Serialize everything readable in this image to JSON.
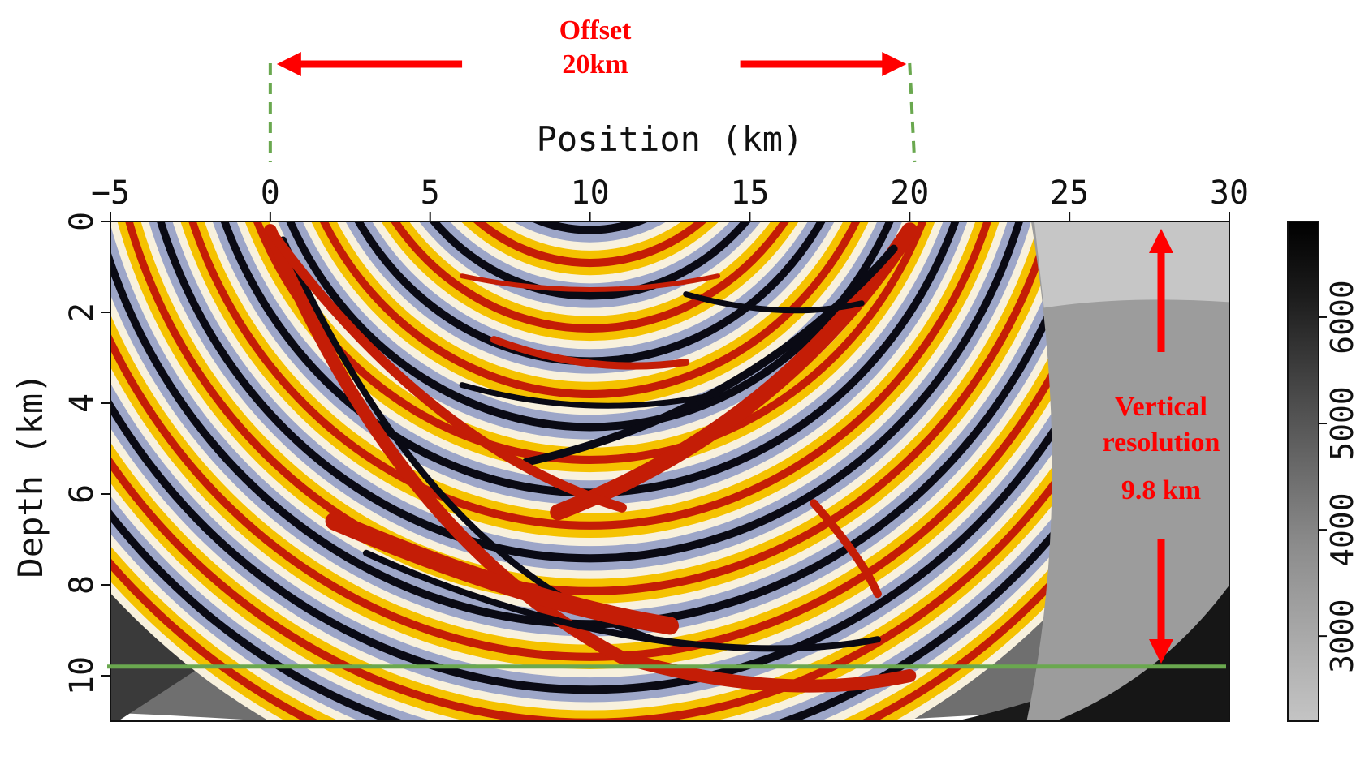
{
  "chart_data": {
    "type": "heatmap",
    "title": "",
    "xlabel": "Position (km)",
    "ylabel": "Depth (km)",
    "xlim": [
      -5,
      30
    ],
    "ylim": [
      0,
      11
    ],
    "x_ticks": [
      "−5",
      "0",
      "5",
      "10",
      "15",
      "20",
      "25",
      "30"
    ],
    "x_tick_values": [
      -5,
      0,
      5,
      10,
      15,
      20,
      25,
      30
    ],
    "y_ticks": [
      "0",
      "2",
      "4",
      "6",
      "8",
      "10"
    ],
    "y_tick_values": [
      0,
      2,
      4,
      6,
      8,
      10
    ],
    "x_axis_position": "top",
    "grid": false,
    "colorbar": {
      "ticks": [
        "3000",
        "4000",
        "5000",
        "6000"
      ],
      "tick_values": [
        3000,
        4000,
        5000,
        6000
      ],
      "range": [
        2200,
        6900
      ],
      "colormap": "gray-to-black"
    },
    "wavefield_colors": {
      "positive": "#c41d06",
      "negative": "#0a0a14",
      "mid_positive": "#f5c200",
      "mid_negative": "#9da6c8",
      "neutral": "#f8f1dd"
    },
    "source_positions_km": [
      0,
      20
    ],
    "offset_km": 20,
    "vertical_resolution_km": 9.8,
    "resolution_line_depth_km": 9.8
  },
  "annotations": {
    "offset_line1": "Offset",
    "offset_line2": "20km",
    "vres_line1": "Vertical",
    "vres_line2": "resolution",
    "vres_line3": "9.8 km",
    "arrow_color": "#ff0000",
    "marker_color": "#6aa84f"
  }
}
